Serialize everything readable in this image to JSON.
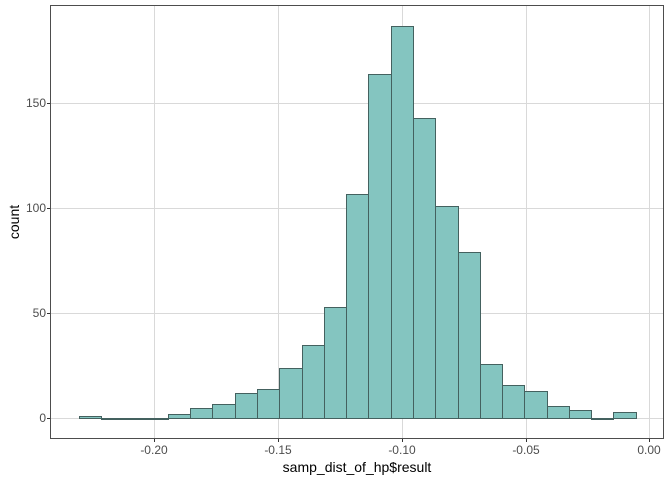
{
  "chart_data": {
    "type": "bar",
    "subtype": "histogram",
    "title": "",
    "xlabel": "samp_dist_of_hp$result",
    "ylabel": "count",
    "x_ticks": [
      -0.2,
      -0.15,
      -0.1,
      -0.05,
      0.0
    ],
    "x_tick_labels": [
      "-0.20",
      "-0.15",
      "-0.10",
      "-0.05",
      "0.00"
    ],
    "y_ticks": [
      0,
      50,
      100,
      150
    ],
    "y_tick_labels": [
      "0",
      "50",
      "100",
      "150"
    ],
    "xlim": [
      -0.2417,
      0.0055
    ],
    "ylim": [
      -9.4,
      196.4
    ],
    "grid": "major-only",
    "legend": "none",
    "bin_start": -0.2305,
    "bin_width": 0.009,
    "bin_centers": [
      -0.226,
      -0.217,
      -0.208,
      -0.199,
      -0.19,
      -0.181,
      -0.172,
      -0.163,
      -0.154,
      -0.145,
      -0.136,
      -0.127,
      -0.118,
      -0.109,
      -0.1,
      -0.091,
      -0.082,
      -0.073,
      -0.064,
      -0.055,
      -0.046,
      -0.037,
      -0.028,
      -0.019,
      -0.01
    ],
    "values": [
      1,
      0,
      0,
      0,
      2,
      5,
      7,
      12,
      14,
      24,
      35,
      53,
      107,
      164,
      187,
      143,
      101,
      79,
      26,
      16,
      13,
      6,
      4,
      0,
      3
    ]
  },
  "style": {
    "bar_fill": "#84c5c0",
    "bar_stroke": "#44615f",
    "grid_color": "#d9d9d9",
    "panel_border": "#4d4d4d",
    "tick_color": "#333333",
    "tick_label_color": "#4d4d4d",
    "axis_title_color": "#000000",
    "background": "#ffffff"
  }
}
